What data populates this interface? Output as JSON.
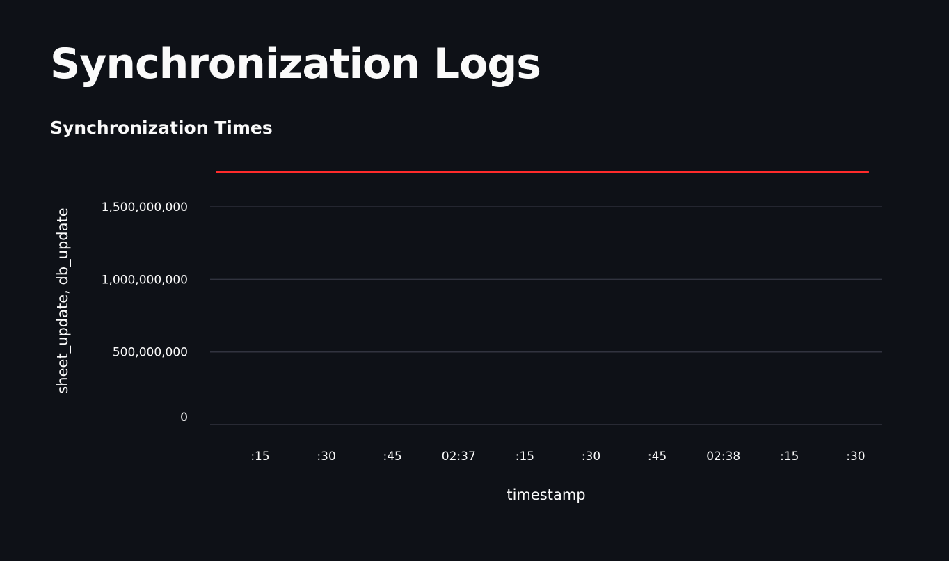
{
  "page": {
    "title": "Synchronization Logs",
    "subheader": "Synchronization Times"
  },
  "chart_data": {
    "type": "line",
    "title": "",
    "xlabel": "timestamp",
    "ylabel": "sheet_update, db_update",
    "x_ticks": [
      ":15",
      ":30",
      ":45",
      "02:37",
      ":15",
      ":30",
      ":45",
      "02:38",
      ":15",
      ":30"
    ],
    "y_ticks": [
      "0",
      "500,000,000",
      "1,000,000,000",
      "1,500,000,000"
    ],
    "y_tick_values": [
      0,
      500000000,
      1000000000,
      1500000000
    ],
    "ylim": [
      0,
      1750000000
    ],
    "grid": true,
    "series": [
      {
        "color": "#ff2b2b",
        "x": [
          "02:36:05",
          "02:38:33"
        ],
        "values": [
          1740000000,
          1740000000
        ]
      }
    ]
  }
}
